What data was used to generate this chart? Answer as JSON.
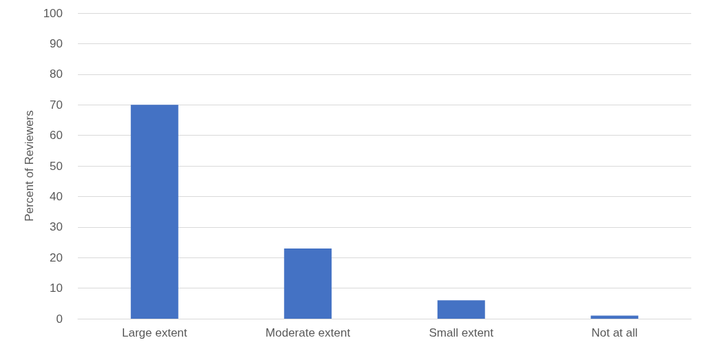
{
  "chart_data": {
    "type": "bar",
    "ylabel": "Percent of Reviewers",
    "categories": [
      "Large extent",
      "Moderate extent",
      "Small extent",
      "Not at all"
    ],
    "values": [
      70,
      23,
      6,
      1
    ],
    "color": "#4472c4",
    "ylim": [
      0,
      100
    ],
    "yticks": [
      0,
      10,
      20,
      30,
      40,
      50,
      60,
      70,
      80,
      90,
      100
    ],
    "grid": "y"
  }
}
